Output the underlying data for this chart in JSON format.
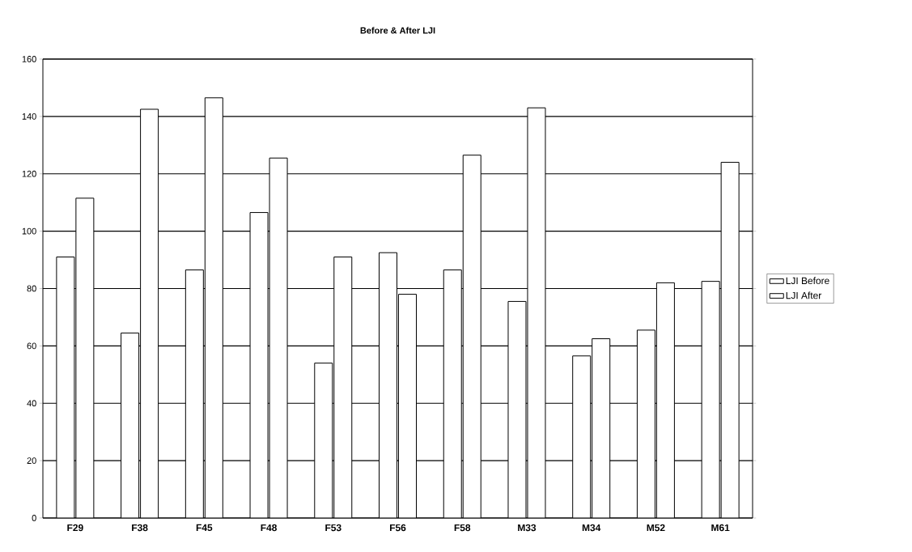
{
  "chart_data": {
    "type": "bar",
    "title": "Before & After LJI",
    "categories": [
      "F29",
      "F38",
      "F45",
      "F48",
      "F53",
      "F56",
      "F58",
      "M33",
      "M34",
      "M52",
      "M61"
    ],
    "series": [
      {
        "name": "LJI Before",
        "color": "#ffffff",
        "values": [
          91,
          64.5,
          86.5,
          106.5,
          54,
          92.5,
          86.5,
          75.5,
          56.5,
          65.5,
          82.5
        ]
      },
      {
        "name": "LJI After",
        "color": "#ffffff",
        "values": [
          111.5,
          142.5,
          146.5,
          125.5,
          91,
          78,
          126.5,
          143,
          62.5,
          82,
          124
        ]
      }
    ],
    "ylim": [
      0,
      160
    ],
    "yticks": [
      0,
      20,
      40,
      60,
      80,
      100,
      120,
      140,
      160
    ],
    "grid": "y",
    "legend": "right"
  }
}
